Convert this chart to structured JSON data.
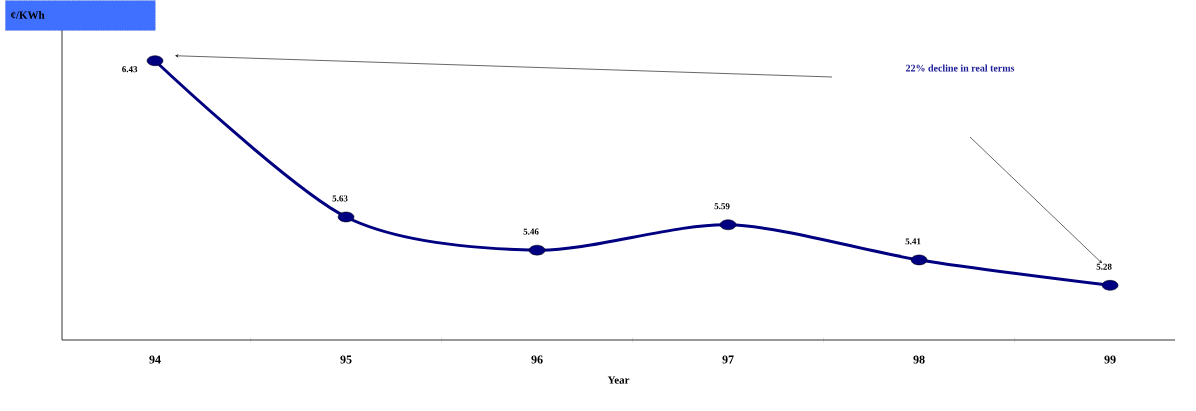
{
  "chart_data": {
    "type": "line",
    "ylabel": "¢/KWh",
    "xlabel": "Year",
    "categories": [
      "94",
      "95",
      "96",
      "97",
      "98",
      "99"
    ],
    "values": [
      6.43,
      5.63,
      5.46,
      5.59,
      5.41,
      5.28
    ],
    "color": "#000080",
    "marker": "circle",
    "data_labels": true,
    "ylim": [
      5.0,
      6.7
    ],
    "annotations": [
      "22% decline in real terms"
    ]
  }
}
